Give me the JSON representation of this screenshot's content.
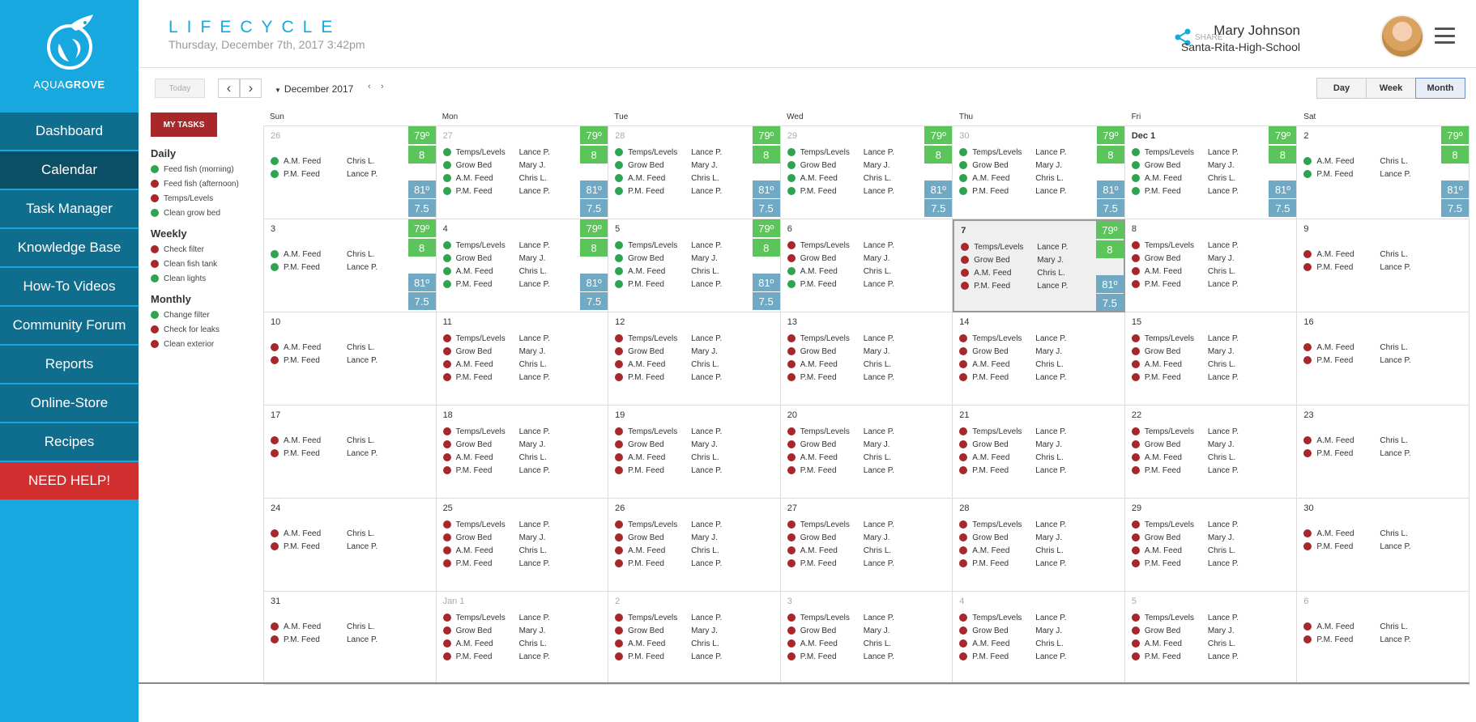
{
  "brand": {
    "name_light": "AQUA",
    "name_bold": "GROVE"
  },
  "sidebar": {
    "items": [
      {
        "label": "Dashboard"
      },
      {
        "label": "Calendar"
      },
      {
        "label": "Task Manager"
      },
      {
        "label": "Knowledge Base"
      },
      {
        "label": "How-To Videos"
      },
      {
        "label": "Community Forum"
      },
      {
        "label": "Reports"
      },
      {
        "label": "Online-Store"
      },
      {
        "label": "Recipes"
      }
    ],
    "active_index": 1,
    "help_label": "NEED HELP!"
  },
  "header": {
    "title": "LIFECYCLE",
    "datetime": "Thursday, December 7th, 2017  3:42pm",
    "share_label": "SHARE",
    "user_name": "Mary Johnson",
    "user_school": "Santa-Rita-High-School"
  },
  "toolbar": {
    "today_label": "Today",
    "prev_symbol": "‹",
    "next_symbol": "›",
    "month_label": "December 2017",
    "mini_prev": "‹",
    "mini_next": "›",
    "views": [
      "Day",
      "Week",
      "Month"
    ],
    "active_view": "Month"
  },
  "tasks": {
    "button_label": "MY TASKS",
    "groups": [
      {
        "title": "Daily",
        "items": [
          {
            "label": "Feed fish (morning)",
            "status": "green"
          },
          {
            "label": "Feed fish (afternoon)",
            "status": "red"
          },
          {
            "label": "Temps/Levels",
            "status": "red"
          },
          {
            "label": "Clean grow bed",
            "status": "green"
          }
        ]
      },
      {
        "title": "Weekly",
        "items": [
          {
            "label": "Check filter",
            "status": "red"
          },
          {
            "label": "Clean fish tank",
            "status": "red"
          },
          {
            "label": "Clean lights",
            "status": "green"
          }
        ]
      },
      {
        "title": "Monthly",
        "items": [
          {
            "label": "Change filter",
            "status": "green"
          },
          {
            "label": "Check for leaks",
            "status": "red"
          },
          {
            "label": "Clean exterior",
            "status": "red"
          }
        ]
      }
    ]
  },
  "calendar": {
    "days_of_week": [
      "Sun",
      "Mon",
      "Tue",
      "Wed",
      "Thu",
      "Fri",
      "Sat"
    ],
    "weekday_events": [
      {
        "task": "Temps/Levels",
        "who": "Lance P."
      },
      {
        "task": "Grow Bed",
        "who": "Mary J."
      },
      {
        "task": "A.M. Feed",
        "who": "Chris L."
      },
      {
        "task": "P.M. Feed",
        "who": "Lance P."
      }
    ],
    "weekend_events": [
      {
        "task": "A.M. Feed",
        "who": "Chris L."
      },
      {
        "task": "P.M. Feed",
        "who": "Lance P."
      }
    ],
    "colors": {
      "done": "#2ea44f",
      "pending": "#a7272a",
      "temp_badge": "#5bc45a",
      "ph_badge": "#6fa9c3"
    },
    "cells": [
      {
        "date": "26",
        "muted": true,
        "status": "green",
        "badges": [
          "79º",
          "8",
          "81º",
          "7.5"
        ]
      },
      {
        "date": "27",
        "muted": true,
        "status": "green",
        "badges": [
          "79º",
          "8",
          "81º",
          "7.5"
        ]
      },
      {
        "date": "28",
        "muted": true,
        "status": "green",
        "badges": [
          "79º",
          "8",
          "81º",
          "7.5"
        ]
      },
      {
        "date": "29",
        "muted": true,
        "status": "green",
        "badges": [
          "79º",
          "8",
          "81º",
          "7.5"
        ]
      },
      {
        "date": "30",
        "muted": true,
        "status": "green",
        "badges": [
          "79º",
          "8",
          "81º",
          "7.5"
        ]
      },
      {
        "date": "Dec 1",
        "bold": true,
        "status": "green",
        "badges": [
          "79º",
          "8",
          "81º",
          "7.5"
        ]
      },
      {
        "date": "2",
        "status": "green",
        "badges": [
          "79º",
          "8",
          "81º",
          "7.5"
        ]
      },
      {
        "date": "3",
        "status": "green",
        "badges": [
          "79º",
          "8",
          "81º",
          "7.5"
        ]
      },
      {
        "date": "4",
        "status": "green",
        "badges": [
          "79º",
          "8",
          "81º",
          "7.5"
        ]
      },
      {
        "date": "5",
        "status": "green",
        "badges": [
          "79º",
          "8",
          "81º",
          "7.5"
        ]
      },
      {
        "date": "6",
        "status": "mixed",
        "badges": []
      },
      {
        "date": "7",
        "today": true,
        "status": "red",
        "badges": [
          "79º",
          "8",
          "81º",
          "7.5"
        ]
      },
      {
        "date": "8",
        "status": "red",
        "badges": []
      },
      {
        "date": "9",
        "status": "red",
        "badges": []
      },
      {
        "date": "10",
        "status": "red",
        "badges": []
      },
      {
        "date": "11",
        "status": "red",
        "badges": []
      },
      {
        "date": "12",
        "status": "red",
        "badges": []
      },
      {
        "date": "13",
        "status": "red",
        "badges": []
      },
      {
        "date": "14",
        "status": "red",
        "badges": []
      },
      {
        "date": "15",
        "status": "red",
        "badges": []
      },
      {
        "date": "16",
        "status": "red",
        "badges": []
      },
      {
        "date": "17",
        "status": "red",
        "badges": []
      },
      {
        "date": "18",
        "status": "red",
        "badges": []
      },
      {
        "date": "19",
        "status": "red",
        "badges": []
      },
      {
        "date": "20",
        "status": "red",
        "badges": []
      },
      {
        "date": "21",
        "status": "red",
        "badges": []
      },
      {
        "date": "22",
        "status": "red",
        "badges": []
      },
      {
        "date": "23",
        "status": "red",
        "badges": []
      },
      {
        "date": "24",
        "status": "red",
        "badges": []
      },
      {
        "date": "25",
        "status": "red",
        "badges": []
      },
      {
        "date": "26",
        "status": "red",
        "badges": []
      },
      {
        "date": "27",
        "status": "red",
        "badges": []
      },
      {
        "date": "28",
        "status": "red",
        "badges": []
      },
      {
        "date": "29",
        "status": "red",
        "badges": []
      },
      {
        "date": "30",
        "status": "red",
        "badges": []
      },
      {
        "date": "31",
        "status": "red",
        "badges": []
      },
      {
        "date": "Jan 1",
        "muted": true,
        "status": "red",
        "badges": []
      },
      {
        "date": "2",
        "muted": true,
        "status": "red",
        "badges": []
      },
      {
        "date": "3",
        "muted": true,
        "status": "red",
        "badges": []
      },
      {
        "date": "4",
        "muted": true,
        "status": "red",
        "badges": []
      },
      {
        "date": "5",
        "muted": true,
        "status": "red",
        "badges": []
      },
      {
        "date": "6",
        "muted": true,
        "status": "red",
        "badges": []
      }
    ]
  }
}
